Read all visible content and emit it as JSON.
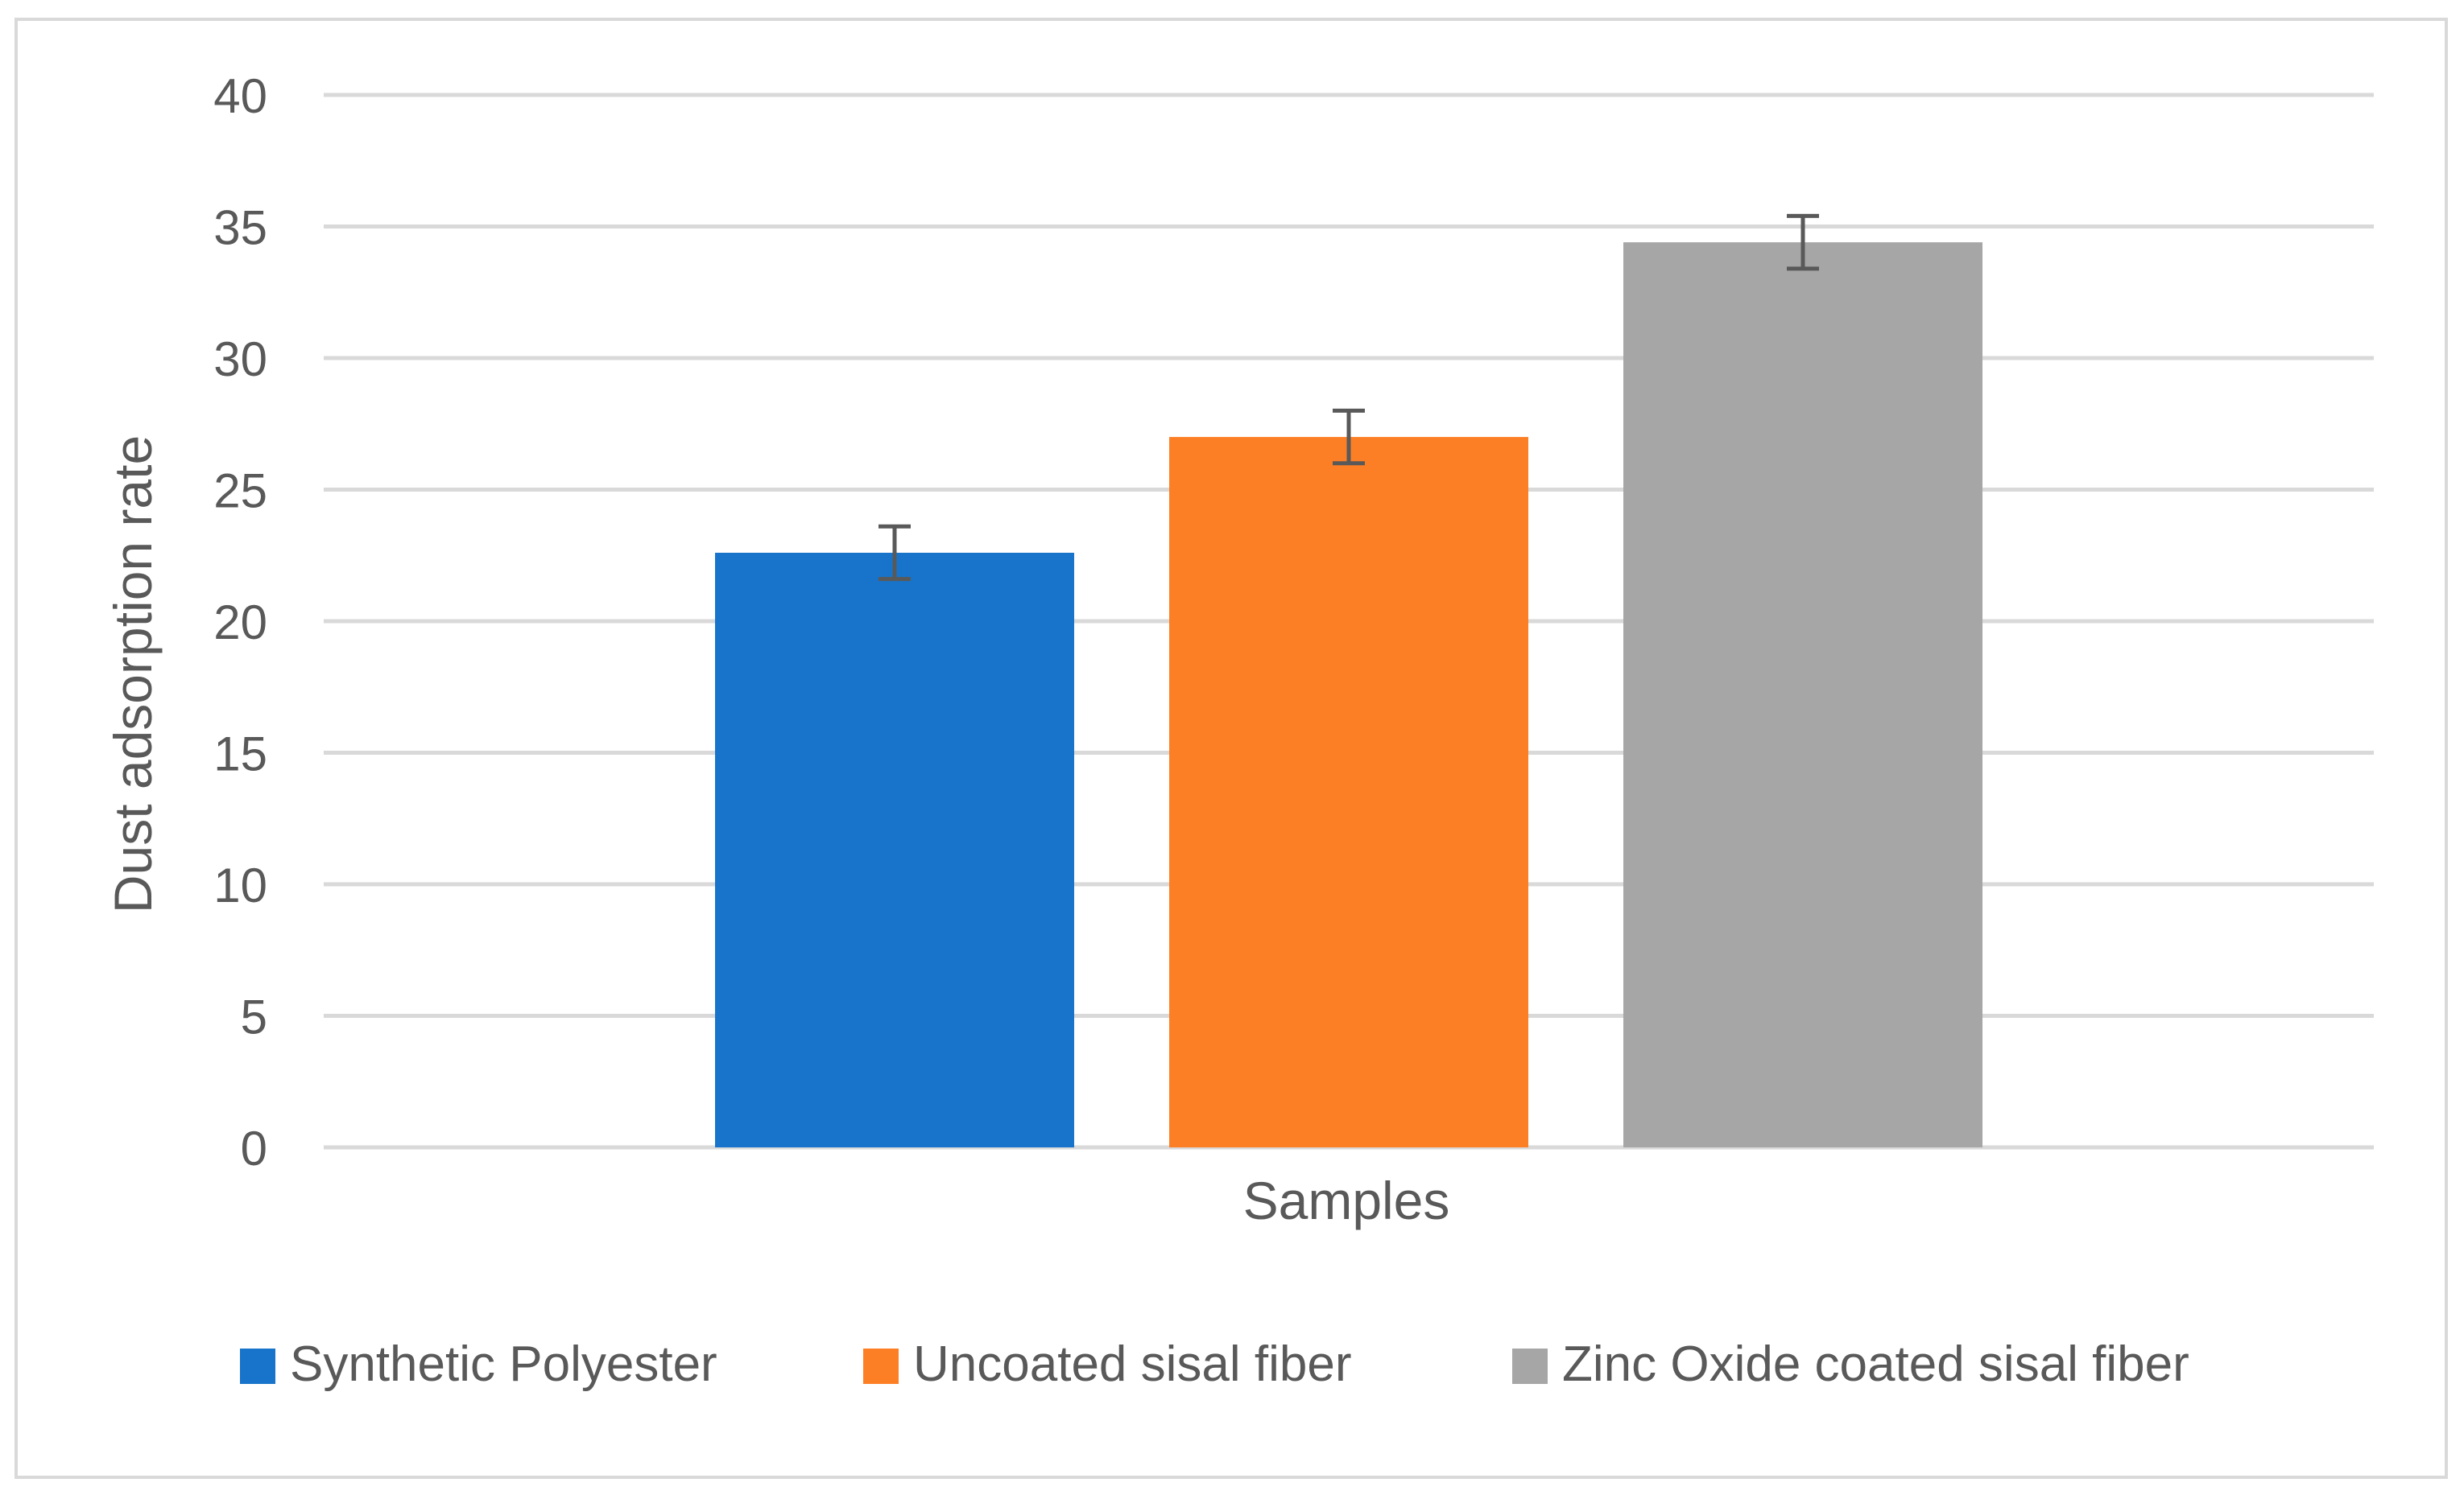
{
  "chart_data": {
    "type": "bar",
    "title": "",
    "xlabel": "Samples",
    "ylabel": "Dust adsorption rate",
    "ylim": [
      0,
      40
    ],
    "yticks": [
      0,
      5,
      10,
      15,
      20,
      25,
      30,
      35,
      40
    ],
    "grid": true,
    "legend_position": "bottom",
    "categories": [
      "Samples"
    ],
    "series": [
      {
        "name": "Synthetic Polyester",
        "values": [
          22.6
        ],
        "error": [
          1.0
        ],
        "color": "#1874CA"
      },
      {
        "name": "Uncoated sisal fiber",
        "values": [
          27.0
        ],
        "error": [
          1.0
        ],
        "color": "#FD7F25"
      },
      {
        "name": "Zinc Oxide coated sisal fiber",
        "values": [
          34.4
        ],
        "error": [
          1.0
        ],
        "color": "#A6A6A6"
      }
    ]
  }
}
